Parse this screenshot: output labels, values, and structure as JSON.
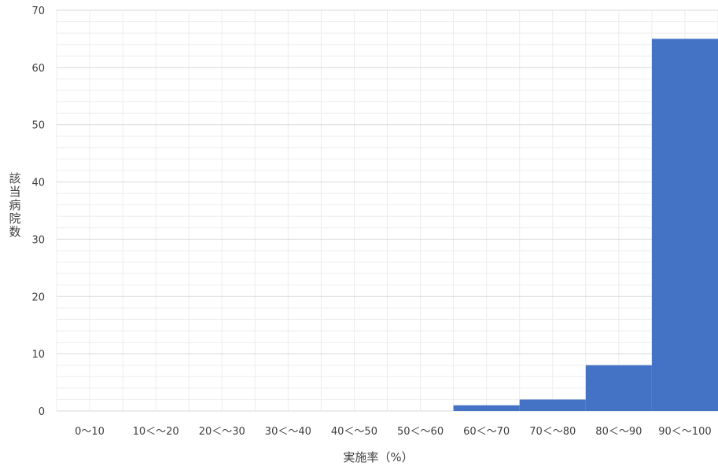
{
  "chart_data": {
    "type": "bar",
    "title": "",
    "xlabel": "実施率（%）",
    "ylabel": "該当病院数",
    "categories": [
      "0～10",
      "10＜～20",
      "20＜～30",
      "30＜～40",
      "40＜～50",
      "50＜～60",
      "60＜～70",
      "70＜～80",
      "80＜～90",
      "90＜～100"
    ],
    "values": [
      0,
      0,
      0,
      0,
      0,
      0,
      1,
      2,
      8,
      65
    ],
    "ylim": [
      0,
      70
    ],
    "yticks": [
      0,
      10,
      20,
      30,
      40,
      50,
      60,
      70
    ],
    "grid": true,
    "legend": "none",
    "colors": {
      "bar": "#4472C4",
      "grid_major": "#d9d9d9",
      "grid_minor": "#ededed",
      "text": "#404040"
    }
  }
}
